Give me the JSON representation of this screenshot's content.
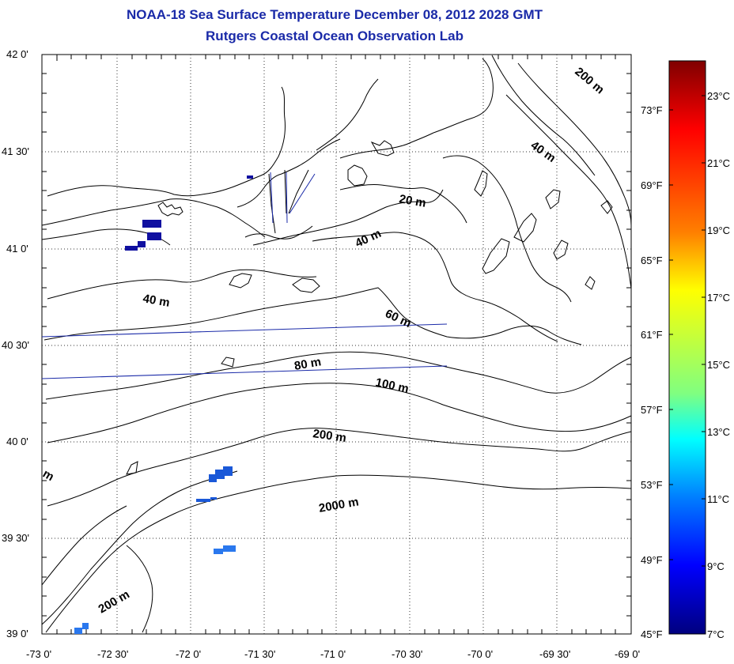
{
  "title": {
    "line1": "NOAA-18 Sea Surface Temperature December 08, 2012 2028 GMT",
    "line2": "Rutgers Coastal Ocean Observation Lab"
  },
  "lat_labels": [
    "42 0'",
    "41 30'",
    "41 0'",
    "40 30'",
    "40 0'",
    "39 30'",
    "39 0'"
  ],
  "lon_labels": [
    "-73 0'",
    "-72 30'",
    "-72 0'",
    "-71 30'",
    "-71 0'",
    "-70 30'",
    "-70 0'",
    "-69 30'",
    "-69 0'"
  ],
  "contour_labels": [
    {
      "text": "200 m",
      "angle": 40
    },
    {
      "text": "40 m",
      "angle": 35
    },
    {
      "text": "20 m",
      "angle": 10
    },
    {
      "text": "40 m",
      "angle": -25
    },
    {
      "text": "40 m",
      "angle": 10
    },
    {
      "text": "60 m",
      "angle": 25
    },
    {
      "text": "80 m",
      "angle": -10
    },
    {
      "text": "100 m",
      "angle": 12
    },
    {
      "text": "200 m",
      "angle": 8
    },
    {
      "text": "2000 m",
      "angle": -10
    },
    {
      "text": "200 m",
      "angle": -30
    },
    {
      "text": "m",
      "angle": 30
    }
  ],
  "colorbar": {
    "fahrenheit": [
      "73°F",
      "69°F",
      "65°F",
      "61°F",
      "57°F",
      "53°F",
      "49°F",
      "45°F"
    ],
    "celsius": [
      "23°C",
      "21°C",
      "19°C",
      "17°C",
      "15°C",
      "13°C",
      "11°C",
      "9°C",
      "7°C"
    ],
    "colors": [
      "#7f0000",
      "#ff0000",
      "#ff8000",
      "#ffff00",
      "#80ff80",
      "#00ffff",
      "#0080ff",
      "#0000ff",
      "#00007f"
    ]
  },
  "map_colors": {
    "coast": "#000000",
    "pixel_dark": "#1010a0",
    "pixel_light": "#1a64e6",
    "track": "#1a2aa8"
  }
}
